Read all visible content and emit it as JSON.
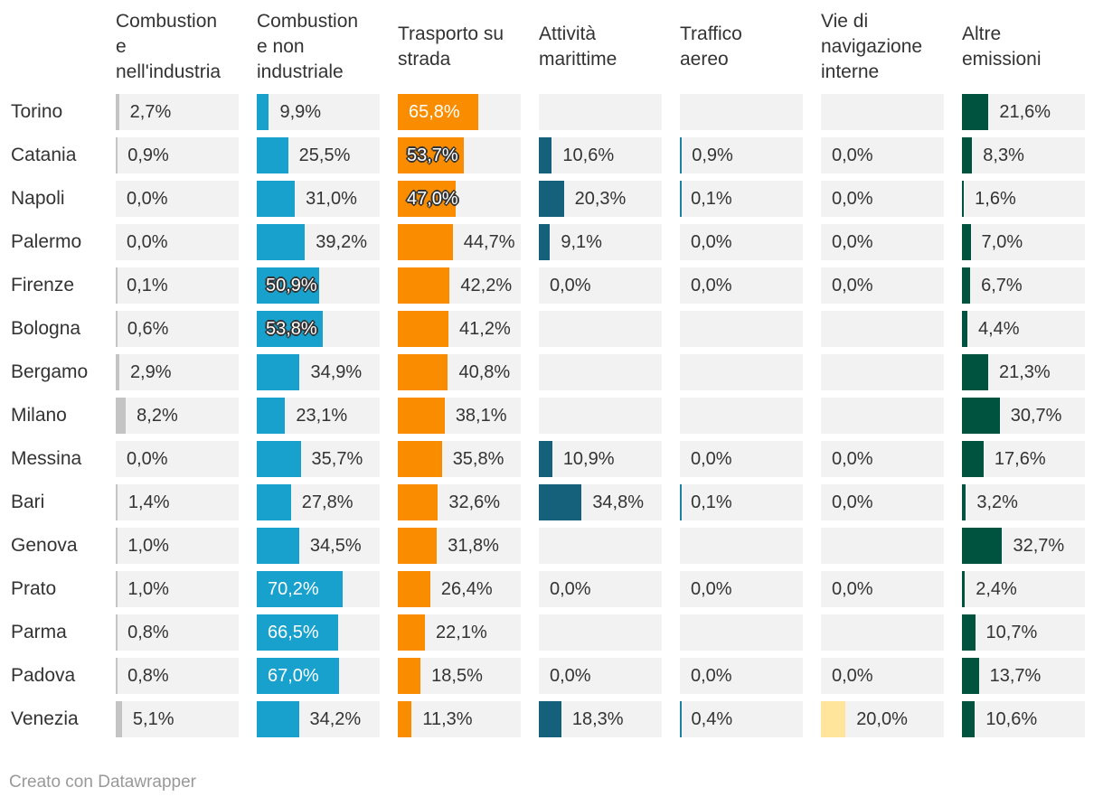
{
  "chart_data": {
    "type": "table",
    "title": "",
    "xlim": [
      0,
      100
    ],
    "unit": "%",
    "columns": [
      {
        "name": "Combustione nell'industria",
        "header_lines": [
          "Combustion",
          "e",
          "nell'industria"
        ],
        "color": "#c4c4c4"
      },
      {
        "name": "Combustione non industriale",
        "header_lines": [
          "Combustion",
          "e non",
          "industriale"
        ],
        "color": "#18a1cd"
      },
      {
        "name": "Trasporto su strada",
        "header_lines": [
          "Trasporto su",
          "strada"
        ],
        "color": "#fa8c00"
      },
      {
        "name": "Attività marittime",
        "header_lines": [
          "Attività",
          "marittime"
        ],
        "color": "#15607a"
      },
      {
        "name": "Traffico aereo",
        "header_lines": [
          "Traffico",
          "aereo"
        ],
        "color": "#1d81a2"
      },
      {
        "name": "Vie di navigazione interne",
        "header_lines": [
          "Vie di",
          "navigazione",
          "interne"
        ],
        "color": "#ffe59c"
      },
      {
        "name": "Altre emissioni",
        "header_lines": [
          "Altre",
          "emissioni"
        ],
        "color": "#00543f"
      }
    ],
    "rows": [
      {
        "city": "Torino",
        "values": [
          2.7,
          9.9,
          65.8,
          null,
          null,
          null,
          21.6
        ],
        "labels": [
          "2,7%",
          "9,9%",
          "65,8%",
          "",
          "",
          "",
          "21,6%"
        ]
      },
      {
        "city": "Catania",
        "values": [
          0.9,
          25.5,
          53.7,
          10.6,
          0.9,
          0.0,
          8.3
        ],
        "labels": [
          "0,9%",
          "25,5%",
          "53,7%",
          "10,6%",
          "0,9%",
          "0,0%",
          "8,3%"
        ]
      },
      {
        "city": "Napoli",
        "values": [
          0.0,
          31.0,
          47.0,
          20.3,
          0.1,
          0.0,
          1.6
        ],
        "labels": [
          "0,0%",
          "31,0%",
          "47,0%",
          "20,3%",
          "0,1%",
          "0,0%",
          "1,6%"
        ]
      },
      {
        "city": "Palermo",
        "values": [
          0.0,
          39.2,
          44.7,
          9.1,
          0.0,
          0.0,
          7.0
        ],
        "labels": [
          "0,0%",
          "39,2%",
          "44,7%",
          "9,1%",
          "0,0%",
          "0,0%",
          "7,0%"
        ]
      },
      {
        "city": "Firenze",
        "values": [
          0.1,
          50.9,
          42.2,
          0.0,
          0.0,
          0.0,
          6.7
        ],
        "labels": [
          "0,1%",
          "50,9%",
          "42,2%",
          "0,0%",
          "0,0%",
          "0,0%",
          "6,7%"
        ]
      },
      {
        "city": "Bologna",
        "values": [
          0.6,
          53.8,
          41.2,
          null,
          null,
          null,
          4.4
        ],
        "labels": [
          "0,6%",
          "53,8%",
          "41,2%",
          "",
          "",
          "",
          "4,4%"
        ]
      },
      {
        "city": "Bergamo",
        "values": [
          2.9,
          34.9,
          40.8,
          null,
          null,
          null,
          21.3
        ],
        "labels": [
          "2,9%",
          "34,9%",
          "40,8%",
          "",
          "",
          "",
          "21,3%"
        ]
      },
      {
        "city": "Milano",
        "values": [
          8.2,
          23.1,
          38.1,
          null,
          null,
          null,
          30.7
        ],
        "labels": [
          "8,2%",
          "23,1%",
          "38,1%",
          "",
          "",
          "",
          "30,7%"
        ]
      },
      {
        "city": "Messina",
        "values": [
          0.0,
          35.7,
          35.8,
          10.9,
          0.0,
          0.0,
          17.6
        ],
        "labels": [
          "0,0%",
          "35,7%",
          "35,8%",
          "10,9%",
          "0,0%",
          "0,0%",
          "17,6%"
        ]
      },
      {
        "city": "Bari",
        "values": [
          1.4,
          27.8,
          32.6,
          34.8,
          0.1,
          0.0,
          3.2
        ],
        "labels": [
          "1,4%",
          "27,8%",
          "32,6%",
          "34,8%",
          "0,1%",
          "0,0%",
          "3,2%"
        ]
      },
      {
        "city": "Genova",
        "values": [
          1.0,
          34.5,
          31.8,
          null,
          null,
          null,
          32.7
        ],
        "labels": [
          "1,0%",
          "34,5%",
          "31,8%",
          "",
          "",
          "",
          "32,7%"
        ]
      },
      {
        "city": "Prato",
        "values": [
          1.0,
          70.2,
          26.4,
          0.0,
          0.0,
          0.0,
          2.4
        ],
        "labels": [
          "1,0%",
          "70,2%",
          "26,4%",
          "0,0%",
          "0,0%",
          "0,0%",
          "2,4%"
        ]
      },
      {
        "city": "Parma",
        "values": [
          0.8,
          66.5,
          22.1,
          null,
          null,
          null,
          10.7
        ],
        "labels": [
          "0,8%",
          "66,5%",
          "22,1%",
          "",
          "",
          "",
          "10,7%"
        ]
      },
      {
        "city": "Padova",
        "values": [
          0.8,
          67.0,
          18.5,
          0.0,
          0.0,
          0.0,
          13.7
        ],
        "labels": [
          "0,8%",
          "67,0%",
          "18,5%",
          "0,0%",
          "0,0%",
          "0,0%",
          "13,7%"
        ]
      },
      {
        "city": "Venezia",
        "values": [
          5.1,
          34.2,
          11.3,
          18.3,
          0.4,
          20.0,
          10.6
        ],
        "labels": [
          "5,1%",
          "34,2%",
          "11,3%",
          "18,3%",
          "0,4%",
          "20,0%",
          "10,6%"
        ]
      }
    ]
  },
  "footer": {
    "credit": "Creato con Datawrapper"
  }
}
